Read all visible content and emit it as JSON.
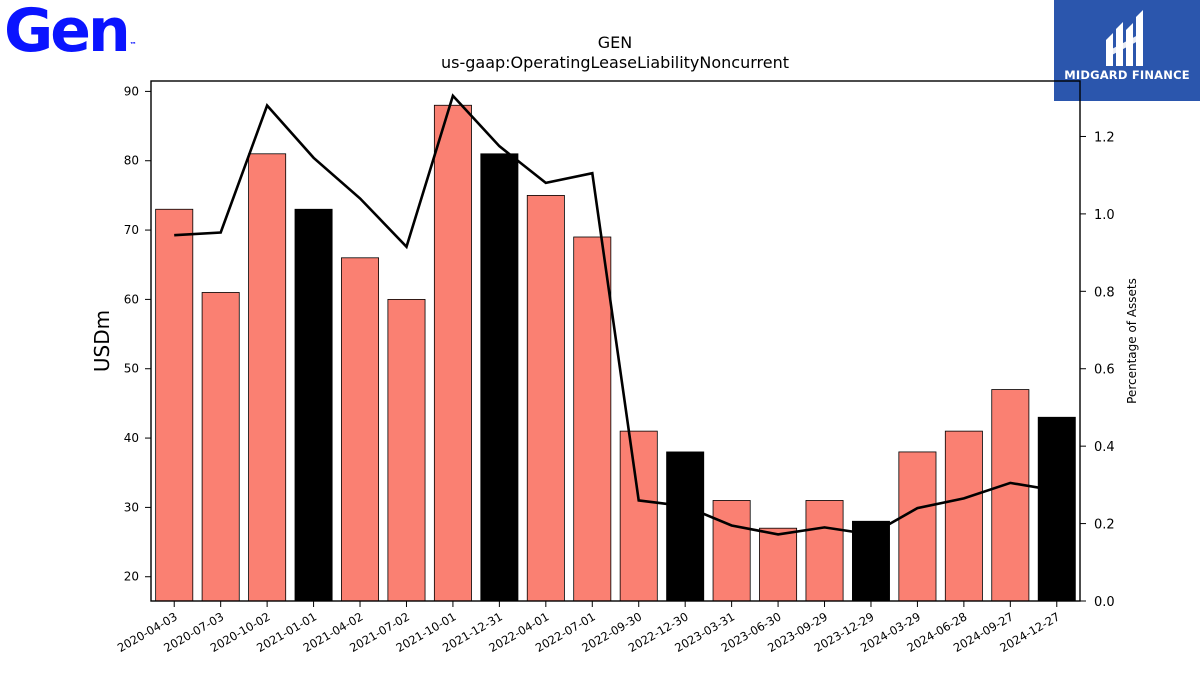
{
  "brand": {
    "company_logo_text": "Gen",
    "company_logo_mark": "™",
    "company_logo_color": "#0a14ff",
    "publisher_logo_text": "MIDGARD FINANCE",
    "publisher_logo_color": "#2b56ad"
  },
  "chart_data": {
    "type": "bar",
    "title": "GEN",
    "subtitle": "us-gaap:OperatingLeaseLiabilityNoncurrent",
    "ylabel": "USDm",
    "y2label": "Percentage of Assets",
    "categories": [
      "2020-04-03",
      "2020-07-03",
      "2020-10-02",
      "2021-01-01",
      "2021-04-02",
      "2021-07-02",
      "2021-10-01",
      "2021-12-31",
      "2022-04-01",
      "2022-07-01",
      "2022-09-30",
      "2022-12-30",
      "2023-03-31",
      "2023-06-30",
      "2023-09-29",
      "2023-12-29",
      "2024-03-29",
      "2024-06-28",
      "2024-09-27",
      "2024-12-27"
    ],
    "series": [
      {
        "kind": "bar",
        "values": [
          73,
          61,
          81,
          73,
          66,
          60,
          88,
          81,
          75,
          69,
          41,
          38,
          31,
          27,
          31,
          28,
          38,
          41,
          47,
          43
        ],
        "highlight": [
          false,
          false,
          false,
          true,
          false,
          false,
          false,
          true,
          false,
          false,
          false,
          true,
          false,
          false,
          false,
          true,
          false,
          false,
          false,
          true
        ]
      },
      {
        "kind": "line",
        "axis": "right",
        "values": [
          0.945,
          0.952,
          1.28,
          1.145,
          1.04,
          0.915,
          1.305,
          1.175,
          1.08,
          1.105,
          0.26,
          0.245,
          0.195,
          0.172,
          0.19,
          0.172,
          0.24,
          0.265,
          0.305,
          0.285
        ]
      }
    ],
    "colors": {
      "bar": "#fa8072",
      "bar_highlight": "#000000",
      "line": "#000000"
    },
    "ylim": [
      16.5,
      91.5
    ],
    "y2lim": [
      0.0,
      1.3433
    ],
    "yticks": [
      20,
      30,
      40,
      50,
      60,
      70,
      80,
      90
    ],
    "y2ticks": [
      0.0,
      0.2,
      0.4,
      0.6,
      0.8,
      1.0,
      1.2
    ],
    "grid": false
  }
}
